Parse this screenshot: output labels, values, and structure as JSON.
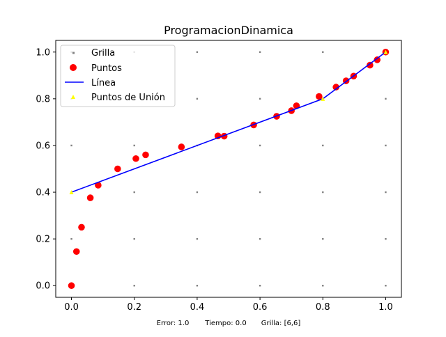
{
  "chart_data": {
    "type": "scatter",
    "title": "ProgramacionDinamica",
    "xlim": [
      -0.05,
      1.05
    ],
    "ylim": [
      -0.05,
      1.05
    ],
    "xticks": [
      "0.0",
      "0.2",
      "0.4",
      "0.6",
      "0.8",
      "1.0"
    ],
    "yticks": [
      "0.0",
      "0.2",
      "0.4",
      "0.6",
      "0.8",
      "1.0"
    ],
    "legend_position": "top-left",
    "legend": [
      "Grilla",
      "Puntos",
      "Línea",
      "Puntos de Unión"
    ],
    "colors": {
      "grid": "#808080",
      "points": "#ff0000",
      "line": "#0000ff",
      "junction": "#ffff00"
    },
    "grid_x": [
      0.0,
      0.2,
      0.4,
      0.6,
      0.8,
      1.0
    ],
    "grid_y": [
      0.0,
      0.2,
      0.4,
      0.6,
      0.8,
      1.0
    ],
    "points": [
      [
        0.0,
        0.0
      ],
      [
        0.016,
        0.146
      ],
      [
        0.032,
        0.25
      ],
      [
        0.06,
        0.376
      ],
      [
        0.085,
        0.43
      ],
      [
        0.147,
        0.5
      ],
      [
        0.205,
        0.544
      ],
      [
        0.236,
        0.56
      ],
      [
        0.35,
        0.594
      ],
      [
        0.466,
        0.641
      ],
      [
        0.486,
        0.64
      ],
      [
        0.58,
        0.688
      ],
      [
        0.653,
        0.725
      ],
      [
        0.7,
        0.749
      ],
      [
        0.716,
        0.77
      ],
      [
        0.788,
        0.81
      ],
      [
        0.842,
        0.85
      ],
      [
        0.874,
        0.877
      ],
      [
        0.898,
        0.897
      ],
      [
        0.95,
        0.944
      ],
      [
        0.973,
        0.967
      ],
      [
        1.0,
        1.0
      ]
    ],
    "line_x": [
      0.0,
      0.8,
      1.0
    ],
    "line_y": [
      0.4,
      0.8,
      1.0
    ],
    "junction_x": [
      0.0,
      0.8,
      1.0
    ],
    "junction_y": [
      0.4,
      0.8,
      1.0
    ]
  },
  "footer": {
    "error": "Error: 1.0",
    "tiempo": "Tiempo: 0.0",
    "grilla": "Grilla: [6,6]"
  }
}
